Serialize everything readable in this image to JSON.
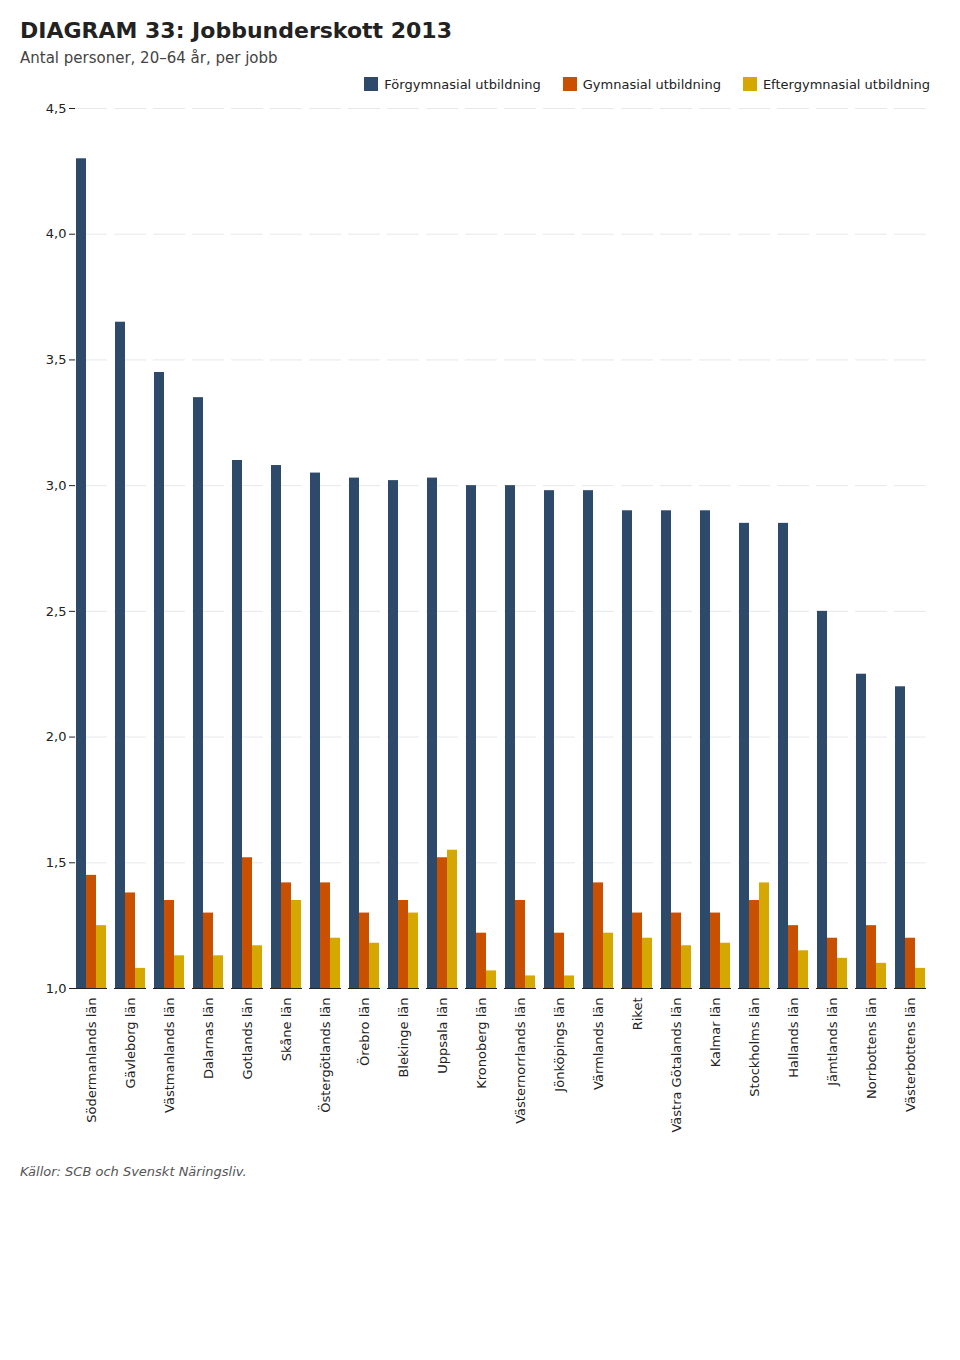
{
  "chart_data": {
    "type": "bar",
    "title": "DIAGRAM 33: Jobbunderskott 2013",
    "subtitle": "Antal personer, 20–64 år, per jobb",
    "categories": [
      "Södermanlands län",
      "Gävleborg län",
      "Västmanlands län",
      "Dalarnas län",
      "Gotlands län",
      "Skåne län",
      "Östergötlands län",
      "Örebro län",
      "Blekinge län",
      "Uppsala län",
      "Kronoberg län",
      "Västernorrlands län",
      "Jönköpings län",
      "Värmlands län",
      "Riket",
      "Västra Götalands län",
      "Kalmar län",
      "Stockholms län",
      "Hallands län",
      "Jämtlands län",
      "Norrbottens län",
      "Västerbottens län"
    ],
    "series": [
      {
        "name": "Förgymnasial utbildning",
        "color": "#2d4a6b",
        "values": [
          4.3,
          3.65,
          3.45,
          3.35,
          3.1,
          3.08,
          3.05,
          3.03,
          3.02,
          3.03,
          3.0,
          3.0,
          2.98,
          2.98,
          2.9,
          2.9,
          2.9,
          2.85,
          2.85,
          2.5,
          2.25,
          2.2
        ]
      },
      {
        "name": "Gymnasial utbildning",
        "color": "#c85000",
        "values": [
          1.45,
          1.38,
          1.35,
          1.3,
          1.52,
          1.42,
          1.42,
          1.3,
          1.35,
          1.52,
          1.22,
          1.35,
          1.22,
          1.42,
          1.3,
          1.3,
          1.3,
          1.35,
          1.25,
          1.2,
          1.25,
          1.2
        ]
      },
      {
        "name": "Eftergymnasial utbildning",
        "color": "#d4a800",
        "values": [
          1.25,
          1.08,
          1.13,
          1.13,
          1.17,
          1.35,
          1.2,
          1.18,
          1.3,
          1.55,
          1.07,
          1.05,
          1.05,
          1.22,
          1.2,
          1.17,
          1.18,
          1.42,
          1.15,
          1.12,
          1.1,
          1.08
        ]
      }
    ],
    "ylim": [
      1.0,
      4.5
    ],
    "yticks": [
      {
        "value": 1.0,
        "label": "1,0"
      },
      {
        "value": 1.5,
        "label": "1,5"
      },
      {
        "value": 2.0,
        "label": "2,0"
      },
      {
        "value": 2.5,
        "label": "2,5"
      },
      {
        "value": 3.0,
        "label": "3,0"
      },
      {
        "value": 3.5,
        "label": "3,5"
      },
      {
        "value": 4.0,
        "label": "4,0"
      },
      {
        "value": 4.5,
        "label": "4,5"
      }
    ],
    "grid": true,
    "legend": "upper right",
    "annotations": [
      "Källor: SCB och Svenskt Näringsliv."
    ]
  }
}
